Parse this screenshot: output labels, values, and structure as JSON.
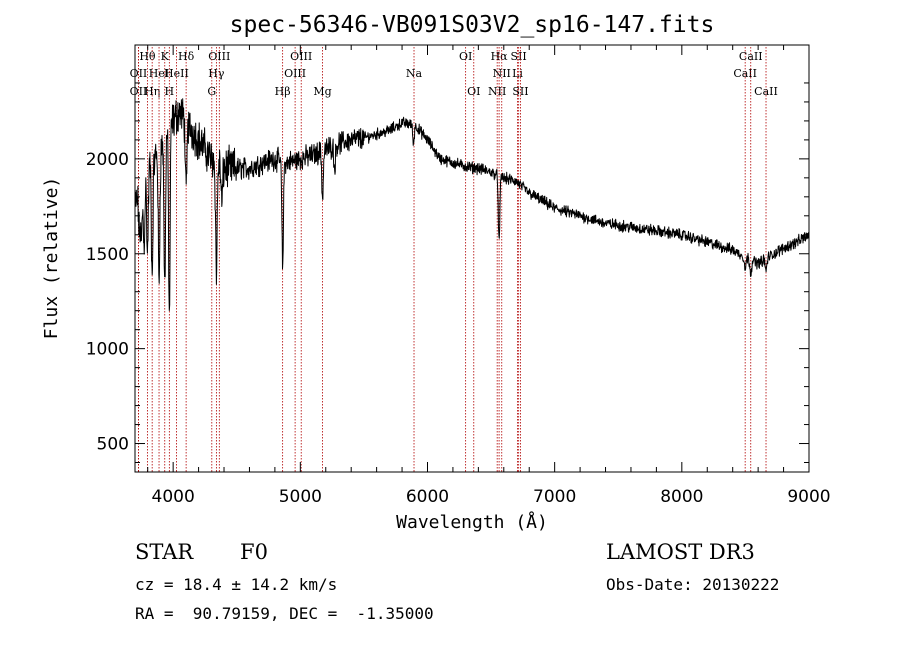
{
  "chart_data": {
    "type": "line",
    "title": "spec-56346-VB091S03V2_sp16-147.fits",
    "xlabel": "Wavelength (Å)",
    "ylabel": "Flux (relative)",
    "xlim": [
      3700,
      9000
    ],
    "ylim": [
      350,
      2600
    ],
    "xticks": [
      4000,
      5000,
      6000,
      7000,
      8000,
      9000
    ],
    "xtick_labels": [
      "4000",
      "5000",
      "6000",
      "7000",
      "8000",
      "9000"
    ],
    "yticks": [
      500,
      1000,
      1500,
      2000
    ],
    "ytick_labels": [
      "500",
      "1000",
      "1500",
      "2000"
    ],
    "continuum": {
      "x": [
        3700,
        3750,
        3800,
        3850,
        3900,
        3950,
        4000,
        4050,
        4100,
        4150,
        4200,
        4300,
        4400,
        4500,
        4600,
        4700,
        4800,
        4900,
        5000,
        5100,
        5200,
        5300,
        5400,
        5500,
        5600,
        5700,
        5800,
        5900,
        6000,
        6100,
        6200,
        6300,
        6400,
        6500,
        6600,
        6700,
        6800,
        6900,
        7000,
        7200,
        7400,
        7600,
        7800,
        8000,
        8200,
        8400,
        8500,
        8600,
        8700,
        8800,
        8900,
        9000
      ],
      "y": [
        1750,
        1850,
        1950,
        2000,
        2050,
        2150,
        2200,
        2250,
        2200,
        2150,
        2100,
        2000,
        1950,
        1950,
        1950,
        1980,
        2000,
        1980,
        2000,
        2020,
        2050,
        2080,
        2100,
        2110,
        2130,
        2150,
        2190,
        2180,
        2100,
        2000,
        1980,
        1960,
        1950,
        1930,
        1900,
        1880,
        1820,
        1780,
        1740,
        1700,
        1660,
        1640,
        1620,
        1600,
        1560,
        1520,
        1480,
        1450,
        1490,
        1530,
        1560,
        1600
      ]
    },
    "absorption_features": [
      {
        "x": 3734,
        "depth": 200
      },
      {
        "x": 3750,
        "depth": 300
      },
      {
        "x": 3771,
        "depth": 350
      },
      {
        "x": 3798,
        "depth": 450
      },
      {
        "x": 3835,
        "depth": 600
      },
      {
        "x": 3889,
        "depth": 700
      },
      {
        "x": 3934,
        "depth": 800
      },
      {
        "x": 3970,
        "depth": 1000
      },
      {
        "x": 4102,
        "depth": 400
      },
      {
        "x": 4340,
        "depth": 600
      },
      {
        "x": 4383,
        "depth": 200
      },
      {
        "x": 4861,
        "depth": 550
      },
      {
        "x": 5175,
        "depth": 250
      },
      {
        "x": 5270,
        "depth": 120
      },
      {
        "x": 5890,
        "depth": 100
      },
      {
        "x": 6563,
        "depth": 350
      },
      {
        "x": 8498,
        "depth": 60
      },
      {
        "x": 8542,
        "depth": 70
      },
      {
        "x": 8662,
        "depth": 70
      }
    ],
    "spectral_lines": [
      {
        "label": "Hδ",
        "x": 4102,
        "row": 0
      },
      {
        "label": "Hβ",
        "x": 4861,
        "row": 2
      },
      {
        "label": "Hγ",
        "x": 4340,
        "row": 1
      },
      {
        "label": "Hα",
        "x": 6563,
        "row": 0
      },
      {
        "label": "OIII",
        "x": 4363,
        "row": 0
      },
      {
        "label": "OIII",
        "x": 4959,
        "row": 1
      },
      {
        "label": "OIII",
        "x": 5007,
        "row": 0
      },
      {
        "label": "G",
        "x": 4304,
        "row": 2
      },
      {
        "label": "Mg",
        "x": 5175,
        "row": 2
      },
      {
        "label": "Na",
        "x": 5894,
        "row": 1
      },
      {
        "label": "OI",
        "x": 6300,
        "row": 0
      },
      {
        "label": "OI",
        "x": 6364,
        "row": 2
      },
      {
        "label": "NII",
        "x": 6548,
        "row": 2
      },
      {
        "label": "NII",
        "x": 6584,
        "row": 1
      },
      {
        "label": "Li",
        "x": 6708,
        "row": 1
      },
      {
        "label": "SII",
        "x": 6717,
        "row": 0
      },
      {
        "label": "SII",
        "x": 6731,
        "row": 2
      },
      {
        "label": "CaII",
        "x": 8498,
        "row": 1
      },
      {
        "label": "CaII",
        "x": 8542,
        "row": 0
      },
      {
        "label": "CaII",
        "x": 8662,
        "row": 2
      },
      {
        "label": "Hθ",
        "x": 3798,
        "row": 0
      },
      {
        "label": "K",
        "x": 3934,
        "row": 0
      },
      {
        "label": "H",
        "x": 3970,
        "row": 2
      },
      {
        "label": "OII",
        "x": 3727,
        "row": 1
      },
      {
        "label": "OII",
        "x": 3727,
        "row": 2
      },
      {
        "label": "Hη",
        "x": 3835,
        "row": 2
      },
      {
        "label": "HeI",
        "x": 3889,
        "row": 1
      },
      {
        "label": "HeII",
        "x": 4026,
        "row": 1
      }
    ]
  },
  "info": {
    "object_class": "STAR",
    "subclass": "F0",
    "survey": "LAMOST DR3",
    "cz": "cz = 18.4 ± 14.2 km/s",
    "obs_date": "Obs-Date: 20130222",
    "coords": "RA =  90.79159, DEC =  -1.35000"
  },
  "colors": {
    "spectrum": "#000000",
    "line_marker": "#b00000"
  }
}
